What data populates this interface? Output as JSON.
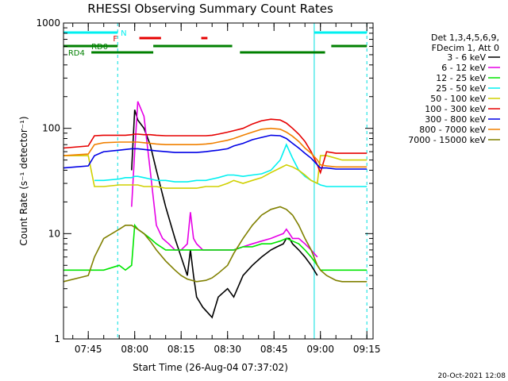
{
  "chart_data": {
    "type": "line",
    "title": "RHESSI Observing Summary Count Rates",
    "xlabel": "Start Time (26-Aug-04 07:37:02)",
    "ylabel": "Count Rate (s⁻¹ detector⁻¹)",
    "yscale": "log",
    "ylim": [
      1,
      1000
    ],
    "xlim_min": [
      0,
      100
    ],
    "x_ticks": [
      {
        "min": 8,
        "label": "07:45"
      },
      {
        "min": 23,
        "label": "08:00"
      },
      {
        "min": 38,
        "label": "08:15"
      },
      {
        "min": 53,
        "label": "08:30"
      },
      {
        "min": 68,
        "label": "08:45"
      },
      {
        "min": 83,
        "label": "09:00"
      },
      {
        "min": 98,
        "label": "09:15"
      }
    ],
    "y_ticks": [
      {
        "value": 1,
        "label": "1"
      },
      {
        "value": 10,
        "label": "10"
      },
      {
        "value": 100,
        "label": "100"
      },
      {
        "value": 1000,
        "label": "1000"
      }
    ],
    "legend": {
      "position": "right",
      "header": [
        "Det 1,3,4,5,6,9,",
        "FDecim 1, Att 0"
      ],
      "entries": [
        "3 - 6 keV",
        "6 - 12 keV",
        "12 - 25 keV",
        "25 - 50 keV",
        "50 - 100 keV",
        "100 - 300 keV",
        "300 - 800 keV",
        "800 - 7000 keV",
        "7000 - 15000 keV"
      ]
    },
    "colors": {
      "3 - 6 keV": "#000000",
      "6 - 12 keV": "#e600e6",
      "12 - 25 keV": "#00e600",
      "25 - 50 keV": "#00f0f0",
      "50 - 100 keV": "#d0d000",
      "100 - 300 keV": "#e60000",
      "300 - 800 keV": "#0000e6",
      "800 - 7000 keV": "#f08000",
      "7000 - 15000 keV": "#808000"
    },
    "series": [
      {
        "name": "3 - 6 keV",
        "x": [
          0,
          8,
          10,
          13,
          18,
          20,
          22,
          23,
          24,
          26,
          28,
          30,
          33,
          36,
          38,
          40,
          41,
          42,
          43,
          45,
          48,
          50,
          53,
          55,
          58,
          61,
          64,
          67,
          69,
          71,
          72,
          73,
          74,
          76,
          78,
          80,
          82,
          83,
          85,
          88,
          90,
          92,
          95,
          98
        ],
        "y": [
          null,
          null,
          null,
          null,
          null,
          null,
          40,
          150,
          120,
          100,
          70,
          40,
          18,
          9,
          6,
          4,
          7,
          4,
          2.5,
          2,
          1.6,
          2.5,
          3,
          2.5,
          4,
          5,
          6,
          7,
          7.5,
          8,
          9,
          9,
          8,
          7,
          6,
          5,
          4,
          null,
          null,
          null,
          null,
          null,
          null,
          null
        ]
      },
      {
        "name": "6 - 12 keV",
        "x": [
          0,
          8,
          10,
          13,
          18,
          20,
          22,
          23,
          24,
          26,
          28,
          30,
          32,
          34,
          36,
          38,
          40,
          41,
          42,
          43,
          45,
          48,
          50,
          53,
          55,
          58,
          61,
          64,
          67,
          69,
          71,
          72,
          73,
          74,
          76,
          78,
          80,
          82,
          83,
          85,
          88,
          90,
          92,
          95,
          98
        ],
        "y": [
          null,
          null,
          null,
          null,
          null,
          null,
          18,
          60,
          180,
          130,
          40,
          12,
          9,
          8,
          7,
          7,
          8,
          16,
          9,
          8,
          7,
          7,
          7,
          7,
          7,
          7.5,
          8,
          8.5,
          9,
          9.5,
          10,
          11,
          10,
          9,
          9,
          8,
          7,
          6,
          null,
          null,
          null,
          null,
          null,
          null,
          null
        ]
      },
      {
        "name": "12 - 25 keV",
        "x": [
          0,
          8,
          10,
          13,
          18,
          20,
          22,
          23,
          24,
          26,
          28,
          30,
          33,
          36,
          38,
          40,
          43,
          46,
          48,
          50,
          53,
          55,
          58,
          61,
          64,
          67,
          70,
          72,
          74,
          76,
          78,
          80,
          82,
          83,
          85,
          88,
          90,
          92,
          95,
          98
        ],
        "y": [
          4.5,
          4.5,
          4.5,
          4.5,
          5,
          4.5,
          5,
          12,
          11,
          10,
          9,
          8,
          7,
          7,
          7,
          7,
          7,
          7,
          7,
          7,
          7,
          7,
          7.5,
          7.5,
          8,
          8,
          8.5,
          9,
          8.5,
          8,
          7,
          6,
          5,
          4.5,
          4.5,
          4.5,
          4.5,
          4.5,
          4.5,
          4.5
        ]
      },
      {
        "name": "25 - 50 keV",
        "x": [
          0,
          8,
          10,
          13,
          18,
          20,
          22,
          23,
          24,
          26,
          28,
          30,
          33,
          36,
          38,
          40,
          43,
          46,
          48,
          50,
          53,
          55,
          58,
          61,
          64,
          67,
          70,
          72,
          74,
          76,
          78,
          80,
          82,
          83,
          85,
          88,
          90,
          92,
          95,
          98
        ],
        "y": [
          null,
          null,
          32,
          32,
          33,
          34,
          34,
          35,
          35,
          34,
          33,
          32,
          32,
          31,
          31,
          31,
          32,
          32,
          33,
          34,
          36,
          36,
          35,
          36,
          37,
          40,
          50,
          70,
          52,
          40,
          35,
          32,
          30,
          29,
          28,
          28,
          28,
          28,
          28,
          28
        ]
      },
      {
        "name": "50 - 100 keV",
        "x": [
          0,
          8,
          10,
          13,
          18,
          20,
          22,
          23,
          24,
          26,
          28,
          30,
          33,
          36,
          38,
          40,
          43,
          46,
          48,
          50,
          53,
          55,
          58,
          61,
          64,
          67,
          70,
          72,
          74,
          76,
          78,
          80,
          82,
          83,
          85,
          88,
          90,
          92,
          95,
          98
        ],
        "y": [
          55,
          55,
          28,
          28,
          29,
          29,
          29,
          29,
          29,
          28,
          28,
          28,
          27,
          27,
          27,
          27,
          27,
          28,
          28,
          28,
          30,
          32,
          30,
          32,
          34,
          38,
          42,
          45,
          43,
          40,
          36,
          32,
          30,
          55,
          55,
          52,
          50,
          50,
          50,
          50
        ]
      },
      {
        "name": "100 - 300 keV",
        "x": [
          0,
          8,
          10,
          13,
          18,
          20,
          22,
          23,
          24,
          26,
          28,
          30,
          33,
          36,
          38,
          40,
          43,
          46,
          48,
          50,
          53,
          55,
          58,
          61,
          64,
          67,
          70,
          72,
          74,
          76,
          78,
          80,
          82,
          83,
          85,
          88,
          90,
          92,
          95,
          98
        ],
        "y": [
          65,
          68,
          85,
          86,
          86,
          86,
          87,
          88,
          88,
          87,
          87,
          86,
          85,
          85,
          85,
          85,
          85,
          85,
          86,
          88,
          92,
          95,
          100,
          110,
          118,
          122,
          120,
          112,
          100,
          88,
          75,
          60,
          45,
          38,
          60,
          58,
          58,
          58,
          58,
          58
        ]
      },
      {
        "name": "300 - 800 keV",
        "x": [
          0,
          8,
          10,
          13,
          18,
          20,
          22,
          23,
          24,
          26,
          28,
          30,
          33,
          36,
          38,
          40,
          43,
          46,
          48,
          50,
          53,
          55,
          58,
          61,
          64,
          67,
          70,
          72,
          74,
          76,
          78,
          80,
          82,
          83,
          85,
          88,
          90,
          92,
          95,
          98
        ],
        "y": [
          42,
          44,
          55,
          60,
          62,
          63,
          64,
          64,
          64,
          63,
          62,
          61,
          60,
          59,
          59,
          59,
          59,
          60,
          61,
          62,
          64,
          68,
          72,
          78,
          82,
          86,
          85,
          80,
          72,
          65,
          58,
          52,
          45,
          42,
          42,
          41,
          41,
          41,
          41,
          41
        ]
      },
      {
        "name": "800 - 7000 keV",
        "x": [
          0,
          8,
          10,
          13,
          18,
          20,
          22,
          23,
          24,
          26,
          28,
          30,
          33,
          36,
          38,
          40,
          43,
          46,
          48,
          50,
          53,
          55,
          58,
          61,
          64,
          67,
          70,
          72,
          74,
          76,
          78,
          80,
          82,
          83,
          85,
          88,
          90,
          92,
          95,
          98
        ],
        "y": [
          55,
          57,
          70,
          73,
          74,
          74,
          74,
          74,
          74,
          73,
          72,
          71,
          70,
          70,
          70,
          70,
          70,
          71,
          72,
          74,
          77,
          80,
          86,
          92,
          98,
          100,
          98,
          92,
          84,
          75,
          65,
          58,
          50,
          45,
          44,
          43,
          43,
          43,
          43,
          43
        ]
      },
      {
        "name": "7000 - 15000 keV",
        "x": [
          0,
          8,
          10,
          13,
          18,
          20,
          22,
          23,
          24,
          26,
          28,
          30,
          33,
          36,
          38,
          40,
          43,
          46,
          48,
          50,
          53,
          55,
          58,
          61,
          64,
          67,
          70,
          72,
          74,
          76,
          78,
          80,
          82,
          83,
          85,
          88,
          90,
          92,
          95,
          98
        ],
        "y": [
          3.5,
          4,
          6,
          9,
          11,
          12,
          12,
          11.5,
          11,
          10,
          8.5,
          7,
          5.5,
          4.5,
          4,
          3.7,
          3.5,
          3.6,
          3.8,
          4.2,
          5,
          6.5,
          9,
          12,
          15,
          17,
          18,
          17,
          15,
          12,
          9,
          7,
          5,
          4.5,
          4,
          3.6,
          3.5,
          3.5,
          3.5,
          3.5
        ]
      }
    ],
    "flags": {
      "N": {
        "label": "N",
        "color": "#00f0f0",
        "intervals": [
          [
            0,
            17.5
          ],
          [
            81,
            98
          ]
        ]
      },
      "F": {
        "label": "F",
        "color": "#e60000",
        "intervals": [
          [
            24.5,
            31.5
          ],
          [
            44.5,
            46.5
          ]
        ]
      },
      "RD0": {
        "label": "RD0",
        "color": "#008000",
        "intervals": [
          [
            0,
            17.5
          ],
          [
            29,
            54.5
          ],
          [
            86.5,
            98
          ]
        ]
      },
      "RD4": {
        "label": "RD4",
        "color": "#008000",
        "intervals": [
          [
            9,
            29
          ],
          [
            57,
            84.5
          ]
        ]
      }
    },
    "vlines": [
      {
        "min": 0,
        "style": "solid"
      },
      {
        "min": 17.5,
        "style": "dashed"
      },
      {
        "min": 81,
        "style": "solid"
      },
      {
        "min": 98,
        "style": "dashed"
      }
    ]
  },
  "footer": {
    "timestamp": "20-Oct-2021 12:08"
  }
}
